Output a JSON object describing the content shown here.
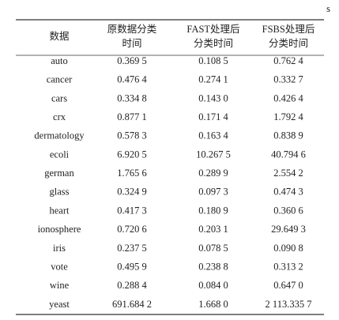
{
  "unit": "s",
  "table": {
    "header": [
      [
        "数据"
      ],
      [
        "原数据分类",
        "时间"
      ],
      [
        "FAST处理后",
        "分类时间"
      ],
      [
        "FSBS处理后",
        "分类时间"
      ]
    ],
    "rows": [
      [
        "auto",
        "0.369 5",
        "0.108 5",
        "0.762 4"
      ],
      [
        "cancer",
        "0.476 4",
        "0.274 1",
        "0.332 7"
      ],
      [
        "cars",
        "0.334 8",
        "0.143 0",
        "0.426 4"
      ],
      [
        "crx",
        "0.877 1",
        "0.171 4",
        "1.792 4"
      ],
      [
        "dermatology",
        "0.578 3",
        "0.163 4",
        "0.838 9"
      ],
      [
        "ecoli",
        "6.920 5",
        "10.267 5",
        "40.794 6"
      ],
      [
        "german",
        "1.765 6",
        "0.289 9",
        "2.554 2"
      ],
      [
        "glass",
        "0.324 9",
        "0.097 3",
        "0.474 3"
      ],
      [
        "heart",
        "0.417 3",
        "0.180 9",
        "0.360 6"
      ],
      [
        "ionosphere",
        "0.720 6",
        "0.203 1",
        "29.649 3"
      ],
      [
        "iris",
        "0.237 5",
        "0.078 5",
        "0.090 8"
      ],
      [
        "vote",
        "0.495 9",
        "0.238 8",
        "0.313 2"
      ],
      [
        "wine",
        "0.288 4",
        "0.084 0",
        "0.647 0"
      ],
      [
        "yeast",
        "691.684 2",
        "1.668 0",
        "2 113.335 7"
      ]
    ]
  }
}
